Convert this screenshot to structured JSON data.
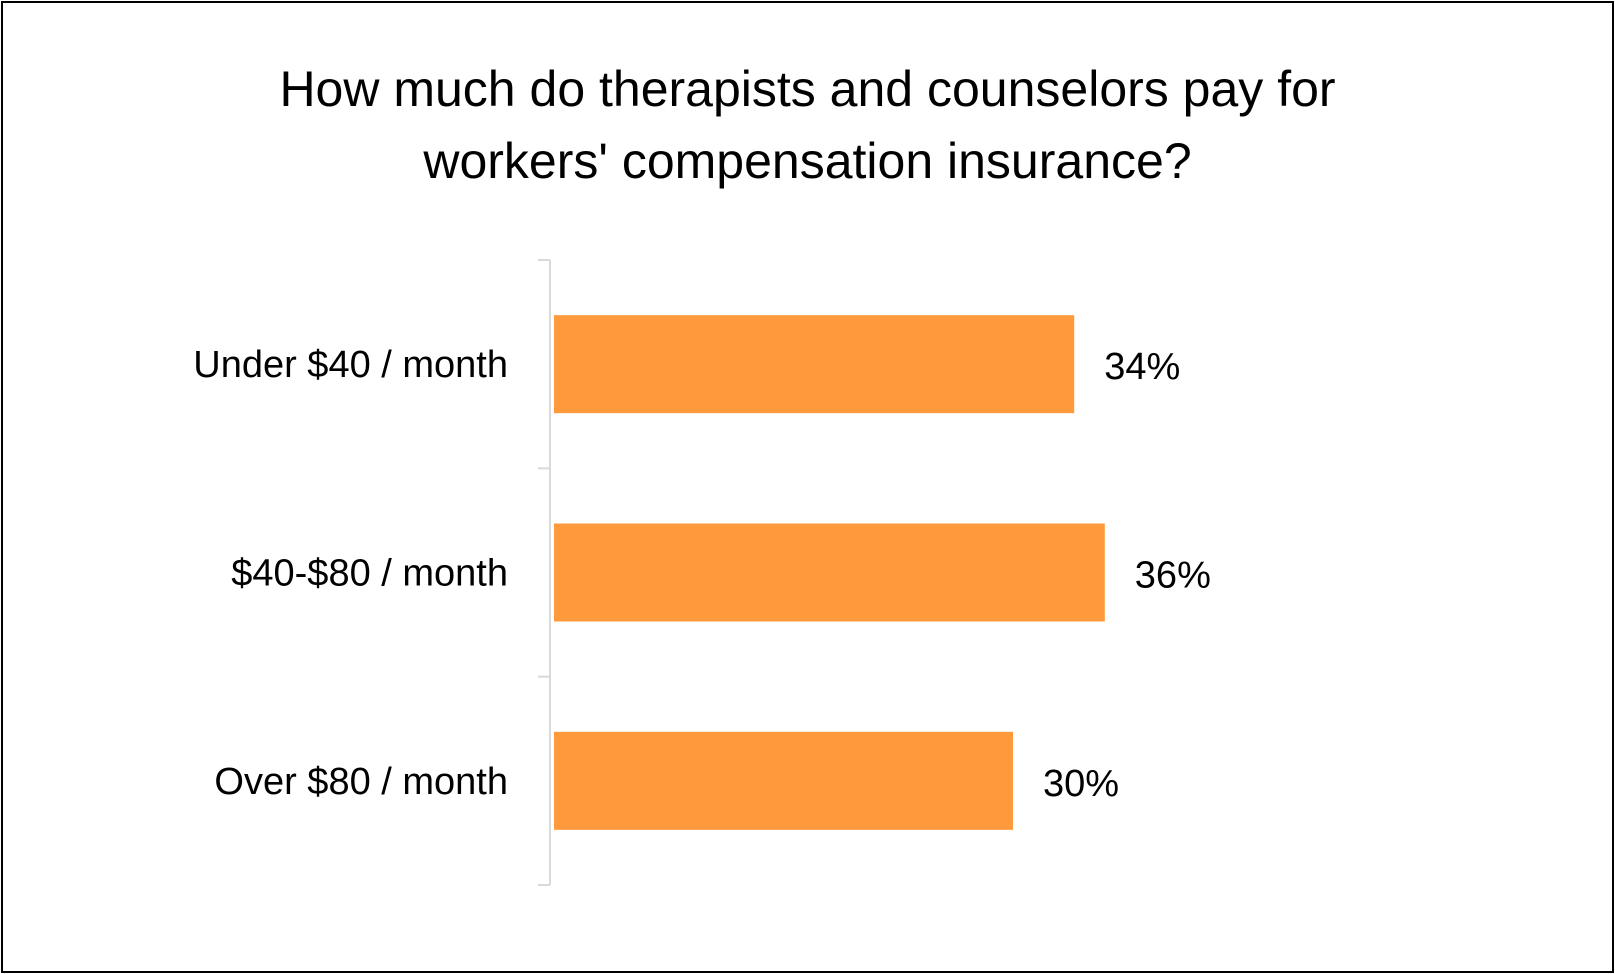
{
  "chart_data": {
    "type": "bar",
    "orientation": "horizontal",
    "title_lines": [
      "How much do therapists and counselors pay for",
      "workers' compensation insurance?"
    ],
    "categories": [
      "Under $40 / month",
      "$40-$80 / month",
      "Over $80 / month"
    ],
    "values": [
      34,
      36,
      30
    ],
    "value_labels": [
      "34%",
      "36%",
      "30%"
    ],
    "xlim": [
      0,
      40
    ],
    "grid": false,
    "legend": "none",
    "bar_color": "#FF9A3C",
    "axis_color": "#D9D9D9"
  }
}
